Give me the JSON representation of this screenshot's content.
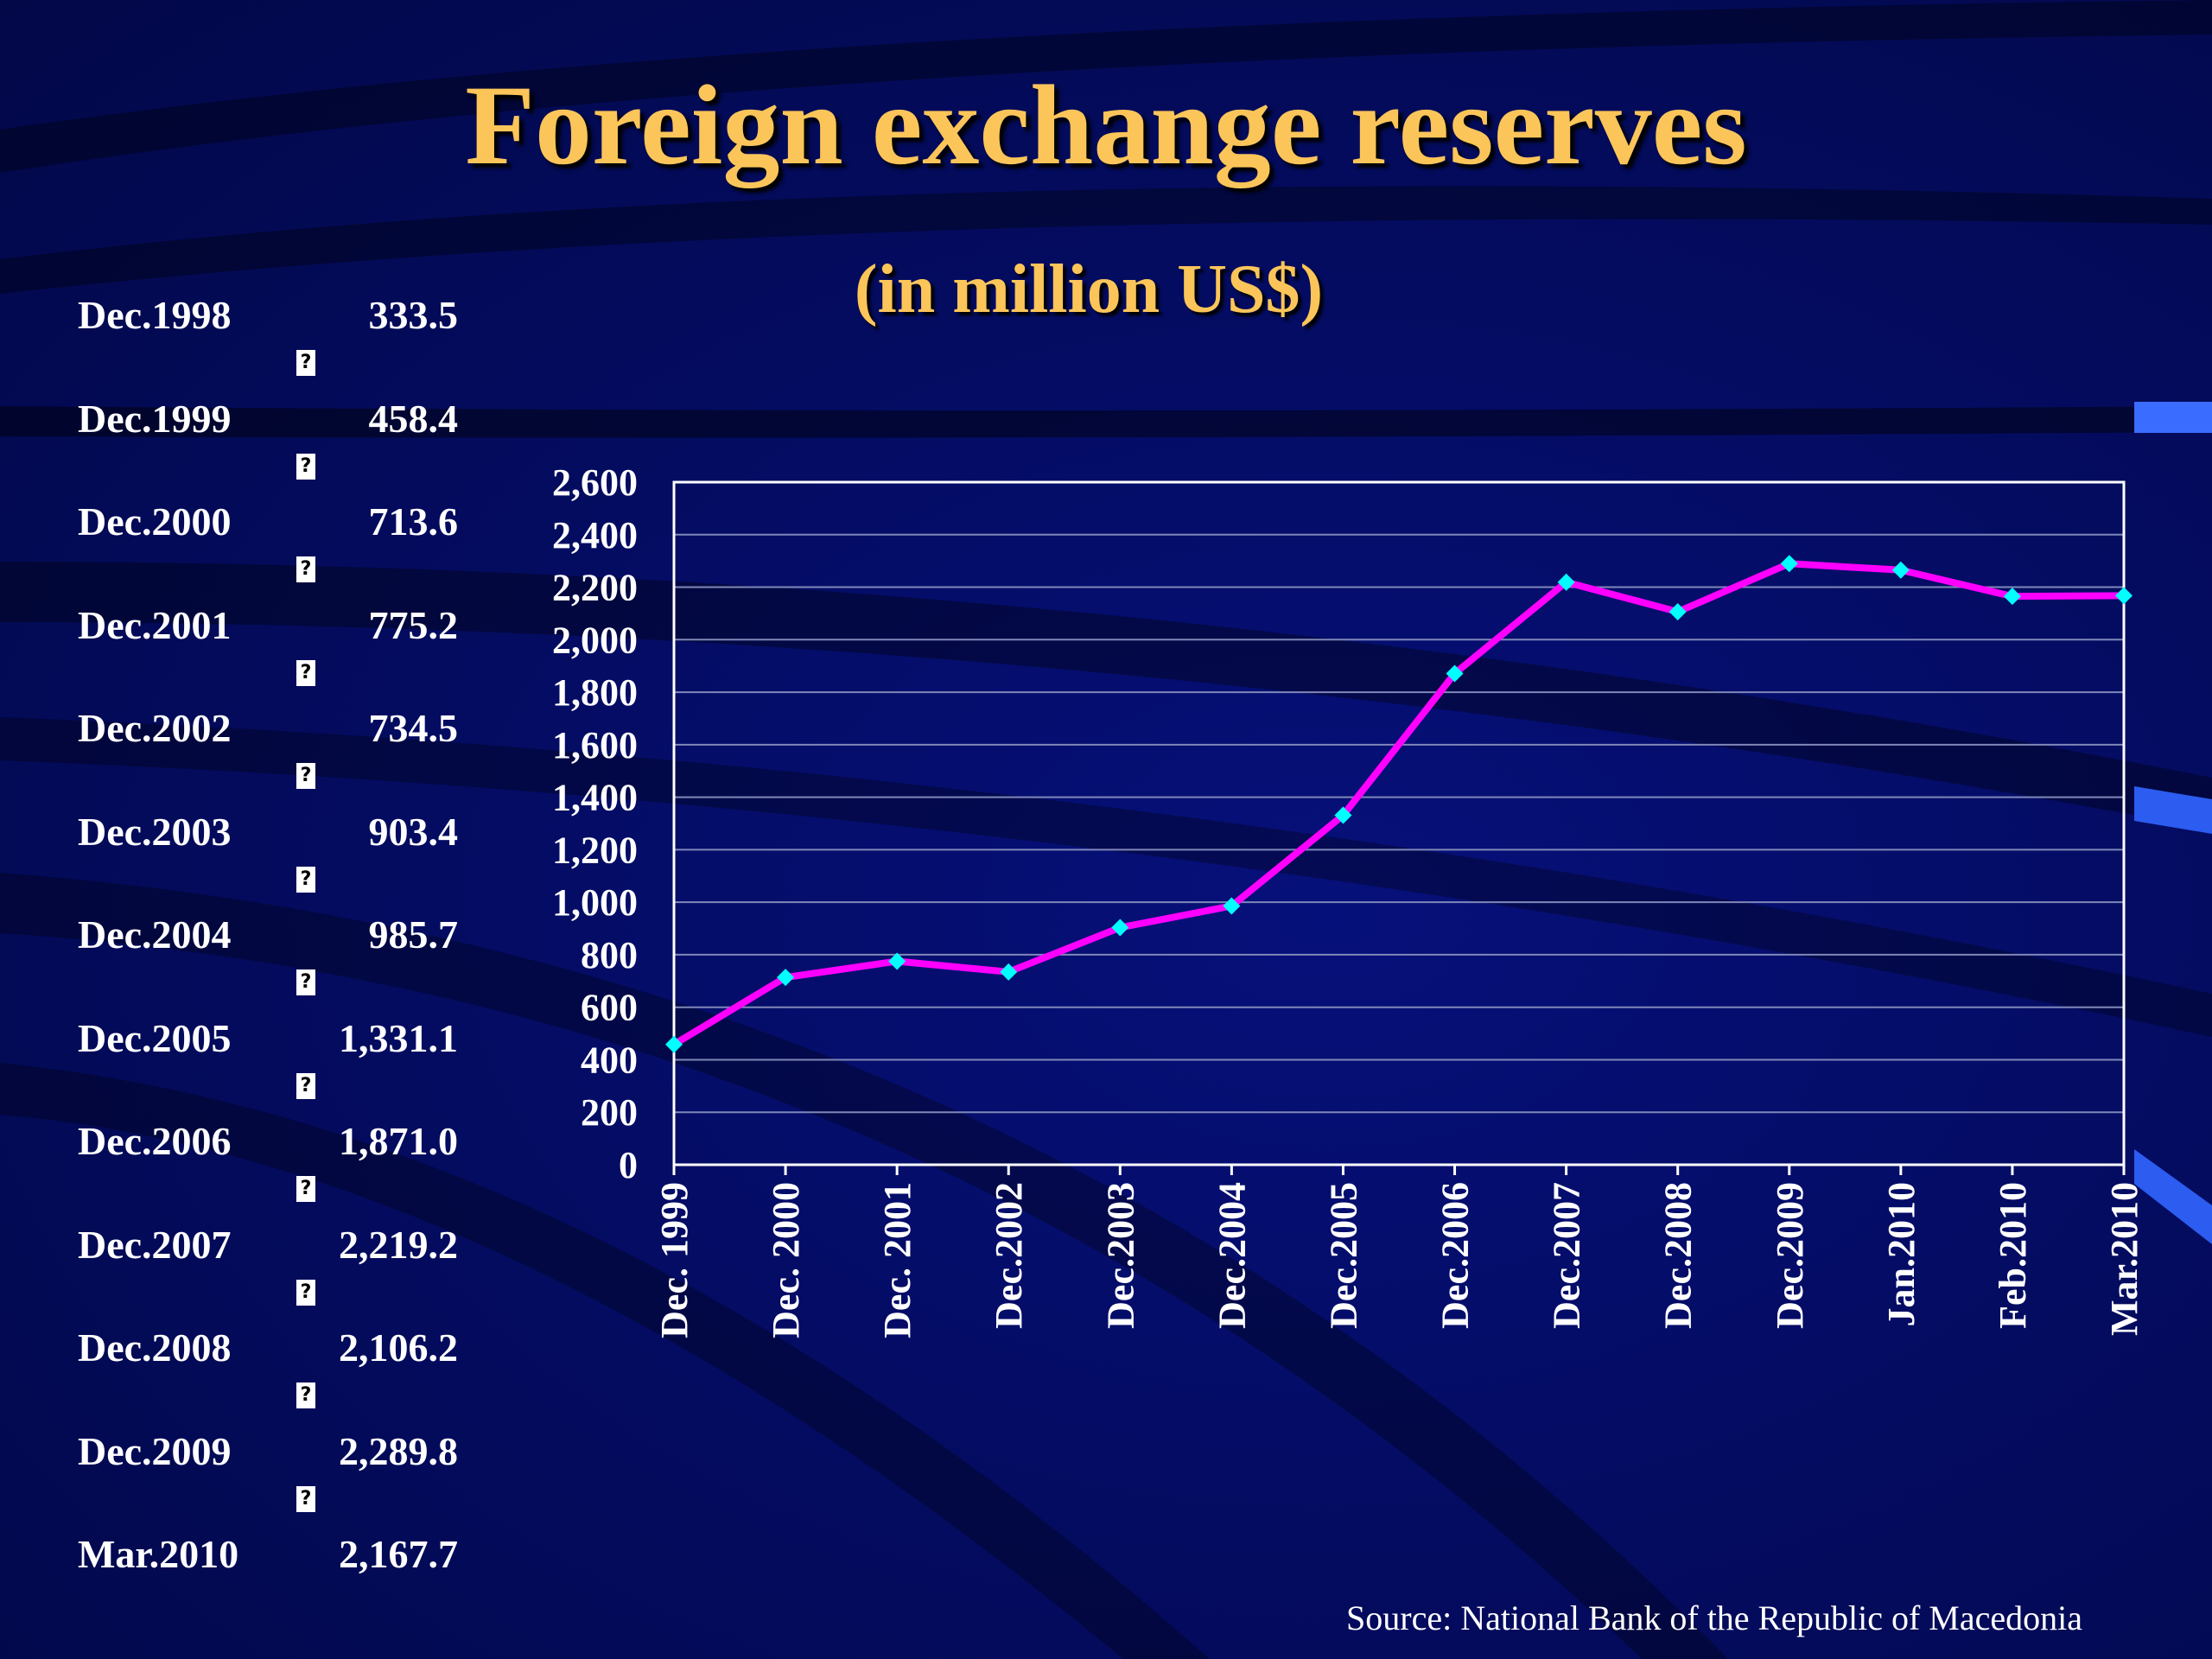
{
  "slide": {
    "title": "Foreign exchange reserves",
    "subtitle": "(in million US$)",
    "source": "Source: National Bank of the Republic of Macedonia"
  },
  "table": {
    "separator_glyph": "?",
    "rows": [
      {
        "date": "Dec.1998",
        "value": "333.5"
      },
      {
        "date": "Dec.1999",
        "value": "458.4"
      },
      {
        "date": "Dec.2000",
        "value": "713.6"
      },
      {
        "date": "Dec.2001",
        "value": "775.2"
      },
      {
        "date": "Dec.2002",
        "value": "734.5"
      },
      {
        "date": "Dec.2003",
        "value": "903.4"
      },
      {
        "date": "Dec.2004",
        "value": "985.7"
      },
      {
        "date": "Dec.2005",
        "value": "1,331.1"
      },
      {
        "date": "Dec.2006",
        "value": "1,871.0"
      },
      {
        "date": "Dec.2007",
        "value": "2,219.2"
      },
      {
        "date": "Dec.2008",
        "value": "2,106.2"
      },
      {
        "date": "Dec.2009",
        "value": "2,289.8"
      },
      {
        "date": "Mar.2010",
        "value": "2,167.7"
      }
    ]
  },
  "colors": {
    "title": "#fbc55a",
    "line": "#ff00ff",
    "marker": "#00ffff",
    "gridline": "#7f88b8",
    "plot_border": "#ffffff",
    "text": "#ffffff"
  },
  "chart_data": {
    "type": "line",
    "title": "",
    "xlabel": "",
    "ylabel": "",
    "ylim": [
      0,
      2600
    ],
    "ytick_step": 200,
    "ytick_labels": [
      "0",
      "200",
      "400",
      "600",
      "800",
      "1,000",
      "1,200",
      "1,400",
      "1,600",
      "1,800",
      "2,000",
      "2,200",
      "2,400",
      "2,600"
    ],
    "grid": true,
    "legend": "none",
    "categories": [
      "Dec. 1999",
      "Dec. 2000",
      "Dec. 2001",
      "Dec.2002",
      "Dec.2003",
      "Dec.2004",
      "Dec.2005",
      "Dec.2006",
      "Dec.2007",
      "Dec.2008",
      "Dec.2009",
      "Jan.2010",
      "Feb.2010",
      "Mar.2010"
    ],
    "series": [
      {
        "values": [
          458.4,
          713.6,
          775.2,
          734.5,
          903.4,
          985.7,
          1331.1,
          1871.0,
          2219.2,
          2106.2,
          2289.8,
          2265,
          2165,
          2167.7
        ]
      }
    ]
  }
}
